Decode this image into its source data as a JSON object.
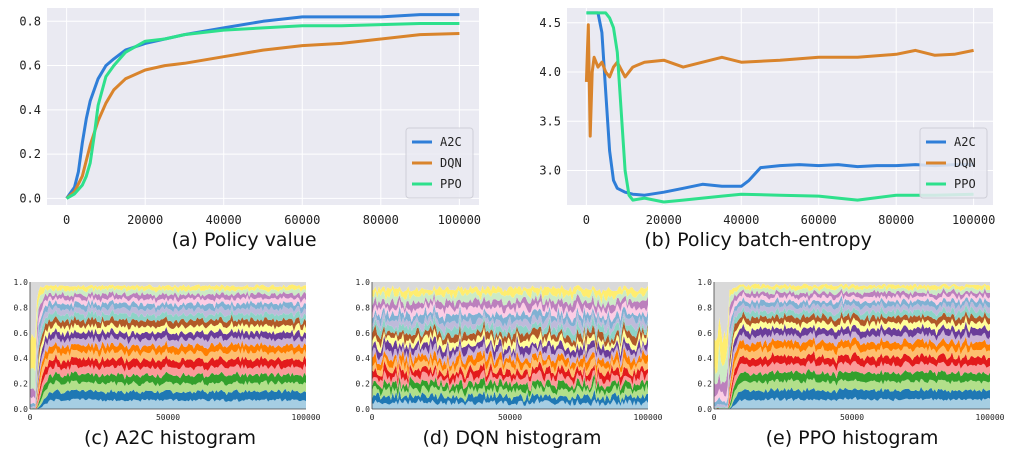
{
  "chart_data": [
    {
      "type": "line",
      "caption": "(a) Policy value",
      "xlim": [
        -5000,
        105000
      ],
      "ylim": [
        -0.03,
        0.86
      ],
      "xticks": [
        0,
        20000,
        40000,
        60000,
        80000,
        100000
      ],
      "xtick_labels": [
        "0",
        "20000",
        "40000",
        "60000",
        "80000",
        "100000"
      ],
      "yticks": [
        0.0,
        0.2,
        0.4,
        0.6,
        0.8
      ],
      "ytick_labels": [
        "0.0",
        "0.2",
        "0.4",
        "0.6",
        "0.8"
      ],
      "grid": true,
      "legend": "bottom-right",
      "series": [
        {
          "name": "A2C",
          "color": "#2f7ed8",
          "x": [
            0,
            2000,
            3000,
            4000,
            5000,
            6000,
            8000,
            10000,
            12000,
            15000,
            20000,
            25000,
            30000,
            40000,
            50000,
            60000,
            70000,
            80000,
            90000,
            100000
          ],
          "values": [
            0.0,
            0.05,
            0.12,
            0.25,
            0.36,
            0.44,
            0.54,
            0.6,
            0.63,
            0.67,
            0.7,
            0.72,
            0.74,
            0.77,
            0.8,
            0.82,
            0.82,
            0.82,
            0.83,
            0.83
          ]
        },
        {
          "name": "DQN",
          "color": "#d9842c",
          "x": [
            0,
            2000,
            4000,
            6000,
            8000,
            10000,
            12000,
            15000,
            20000,
            25000,
            30000,
            40000,
            50000,
            60000,
            70000,
            80000,
            90000,
            100000
          ],
          "values": [
            0.0,
            0.03,
            0.1,
            0.24,
            0.35,
            0.43,
            0.49,
            0.54,
            0.58,
            0.6,
            0.61,
            0.64,
            0.67,
            0.69,
            0.7,
            0.72,
            0.74,
            0.745
          ]
        },
        {
          "name": "PPO",
          "color": "#2ee08c",
          "x": [
            0,
            2000,
            4000,
            5000,
            6000,
            7000,
            8000,
            10000,
            12000,
            15000,
            20000,
            25000,
            30000,
            40000,
            50000,
            60000,
            70000,
            80000,
            90000,
            100000
          ],
          "values": [
            0.0,
            0.02,
            0.06,
            0.1,
            0.16,
            0.28,
            0.42,
            0.55,
            0.6,
            0.66,
            0.71,
            0.72,
            0.74,
            0.76,
            0.77,
            0.78,
            0.78,
            0.785,
            0.79,
            0.79
          ]
        }
      ]
    },
    {
      "type": "line",
      "caption": "(b) Policy batch-entropy",
      "xlim": [
        -5000,
        105000
      ],
      "ylim": [
        2.65,
        4.65
      ],
      "xticks": [
        0,
        20000,
        40000,
        60000,
        80000,
        100000
      ],
      "xtick_labels": [
        "0",
        "20000",
        "40000",
        "60000",
        "80000",
        "100000"
      ],
      "yticks": [
        3.0,
        3.5,
        4.0,
        4.5
      ],
      "ytick_labels": [
        "3.0",
        "3.5",
        "4.0",
        "4.5"
      ],
      "grid": true,
      "legend": "bottom-right",
      "series": [
        {
          "name": "A2C",
          "color": "#2f7ed8",
          "x": [
            0,
            3000,
            4000,
            5000,
            6000,
            7000,
            8000,
            10000,
            12000,
            15000,
            20000,
            25000,
            30000,
            35000,
            40000,
            42000,
            45000,
            50000,
            55000,
            60000,
            65000,
            70000,
            75000,
            80000,
            85000,
            90000,
            95000,
            100000
          ],
          "values": [
            4.6,
            4.6,
            4.4,
            3.8,
            3.2,
            2.9,
            2.82,
            2.78,
            2.76,
            2.75,
            2.78,
            2.82,
            2.86,
            2.84,
            2.84,
            2.9,
            3.03,
            3.05,
            3.06,
            3.05,
            3.06,
            3.04,
            3.05,
            3.05,
            3.06,
            3.05,
            3.06,
            3.06
          ]
        },
        {
          "name": "DQN",
          "color": "#d9842c",
          "x": [
            0,
            500,
            1000,
            1500,
            2000,
            3000,
            4000,
            5000,
            6000,
            7000,
            8000,
            10000,
            12000,
            15000,
            20000,
            25000,
            30000,
            35000,
            40000,
            50000,
            60000,
            70000,
            80000,
            85000,
            90000,
            95000,
            100000
          ],
          "values": [
            3.9,
            4.48,
            3.35,
            4.0,
            4.15,
            4.05,
            4.1,
            4.0,
            3.95,
            4.05,
            4.1,
            3.95,
            4.05,
            4.1,
            4.12,
            4.05,
            4.1,
            4.15,
            4.1,
            4.12,
            4.15,
            4.15,
            4.18,
            4.22,
            4.17,
            4.18,
            4.22
          ]
        },
        {
          "name": "PPO",
          "color": "#2ee08c",
          "x": [
            0,
            5000,
            6000,
            7000,
            8000,
            9000,
            10000,
            11000,
            12000,
            15000,
            20000,
            25000,
            30000,
            35000,
            40000,
            50000,
            60000,
            70000,
            80000,
            90000,
            100000
          ],
          "values": [
            4.6,
            4.6,
            4.55,
            4.45,
            4.2,
            3.6,
            3.0,
            2.75,
            2.7,
            2.72,
            2.68,
            2.7,
            2.72,
            2.74,
            2.76,
            2.75,
            2.74,
            2.7,
            2.75,
            2.75,
            2.76
          ]
        }
      ]
    },
    {
      "type": "area",
      "caption": "(c) A2C histogram",
      "xlim": [
        0,
        100000
      ],
      "ylim": [
        0.0,
        1.0
      ],
      "xticks": [
        0,
        50000,
        100000
      ],
      "xtick_labels": [
        "0",
        "50000",
        "100000"
      ],
      "yticks": [
        0.0,
        0.2,
        0.4,
        0.6,
        0.8,
        1.0
      ],
      "ytick_labels": [
        "0.0",
        "0.2",
        "0.4",
        "0.6",
        "0.8",
        "1.0"
      ],
      "stacked_bands": 20,
      "palette": [
        "#a6cee3",
        "#1f78b4",
        "#b2df8a",
        "#33a02c",
        "#fb9a99",
        "#e31a1c",
        "#fdbf6f",
        "#ff7f00",
        "#cab2d6",
        "#6a3d9a",
        "#ffff99",
        "#b15928",
        "#8dd3c7",
        "#bebada",
        "#80b1d3",
        "#fccde5",
        "#bc80bd",
        "#ccebc5",
        "#ffed6f",
        "#d9d9d9"
      ]
    },
    {
      "type": "area",
      "caption": "(d) DQN histogram",
      "xlim": [
        0,
        100000
      ],
      "ylim": [
        0.0,
        1.0
      ],
      "xticks": [
        0,
        50000,
        100000
      ],
      "xtick_labels": [
        "0",
        "50000",
        "100000"
      ],
      "yticks": [
        0.0,
        0.2,
        0.4,
        0.6,
        0.8,
        1.0
      ],
      "ytick_labels": [
        "0.0",
        "0.2",
        "0.4",
        "0.6",
        "0.8",
        "1.0"
      ],
      "stacked_bands": 20,
      "palette": [
        "#a6cee3",
        "#1f78b4",
        "#b2df8a",
        "#33a02c",
        "#fb9a99",
        "#e31a1c",
        "#fdbf6f",
        "#ff7f00",
        "#cab2d6",
        "#6a3d9a",
        "#ffff99",
        "#b15928",
        "#8dd3c7",
        "#bebada",
        "#80b1d3",
        "#fccde5",
        "#bc80bd",
        "#ccebc5",
        "#ffed6f",
        "#d9d9d9"
      ]
    },
    {
      "type": "area",
      "caption": "(e) PPO histogram",
      "xlim": [
        0,
        100000
      ],
      "ylim": [
        0.0,
        1.0
      ],
      "xticks": [
        0,
        50000,
        100000
      ],
      "xtick_labels": [
        "0",
        "50000",
        "100000"
      ],
      "yticks": [
        0.0,
        0.2,
        0.4,
        0.6,
        0.8,
        1.0
      ],
      "ytick_labels": [
        "0.0",
        "0.2",
        "0.4",
        "0.6",
        "0.8",
        "1.0"
      ],
      "stacked_bands": 20,
      "palette": [
        "#a6cee3",
        "#1f78b4",
        "#b2df8a",
        "#33a02c",
        "#fb9a99",
        "#e31a1c",
        "#fdbf6f",
        "#ff7f00",
        "#cab2d6",
        "#6a3d9a",
        "#ffff99",
        "#b15928",
        "#8dd3c7",
        "#bebada",
        "#80b1d3",
        "#fccde5",
        "#bc80bd",
        "#ccebc5",
        "#ffed6f",
        "#d9d9d9"
      ]
    }
  ]
}
